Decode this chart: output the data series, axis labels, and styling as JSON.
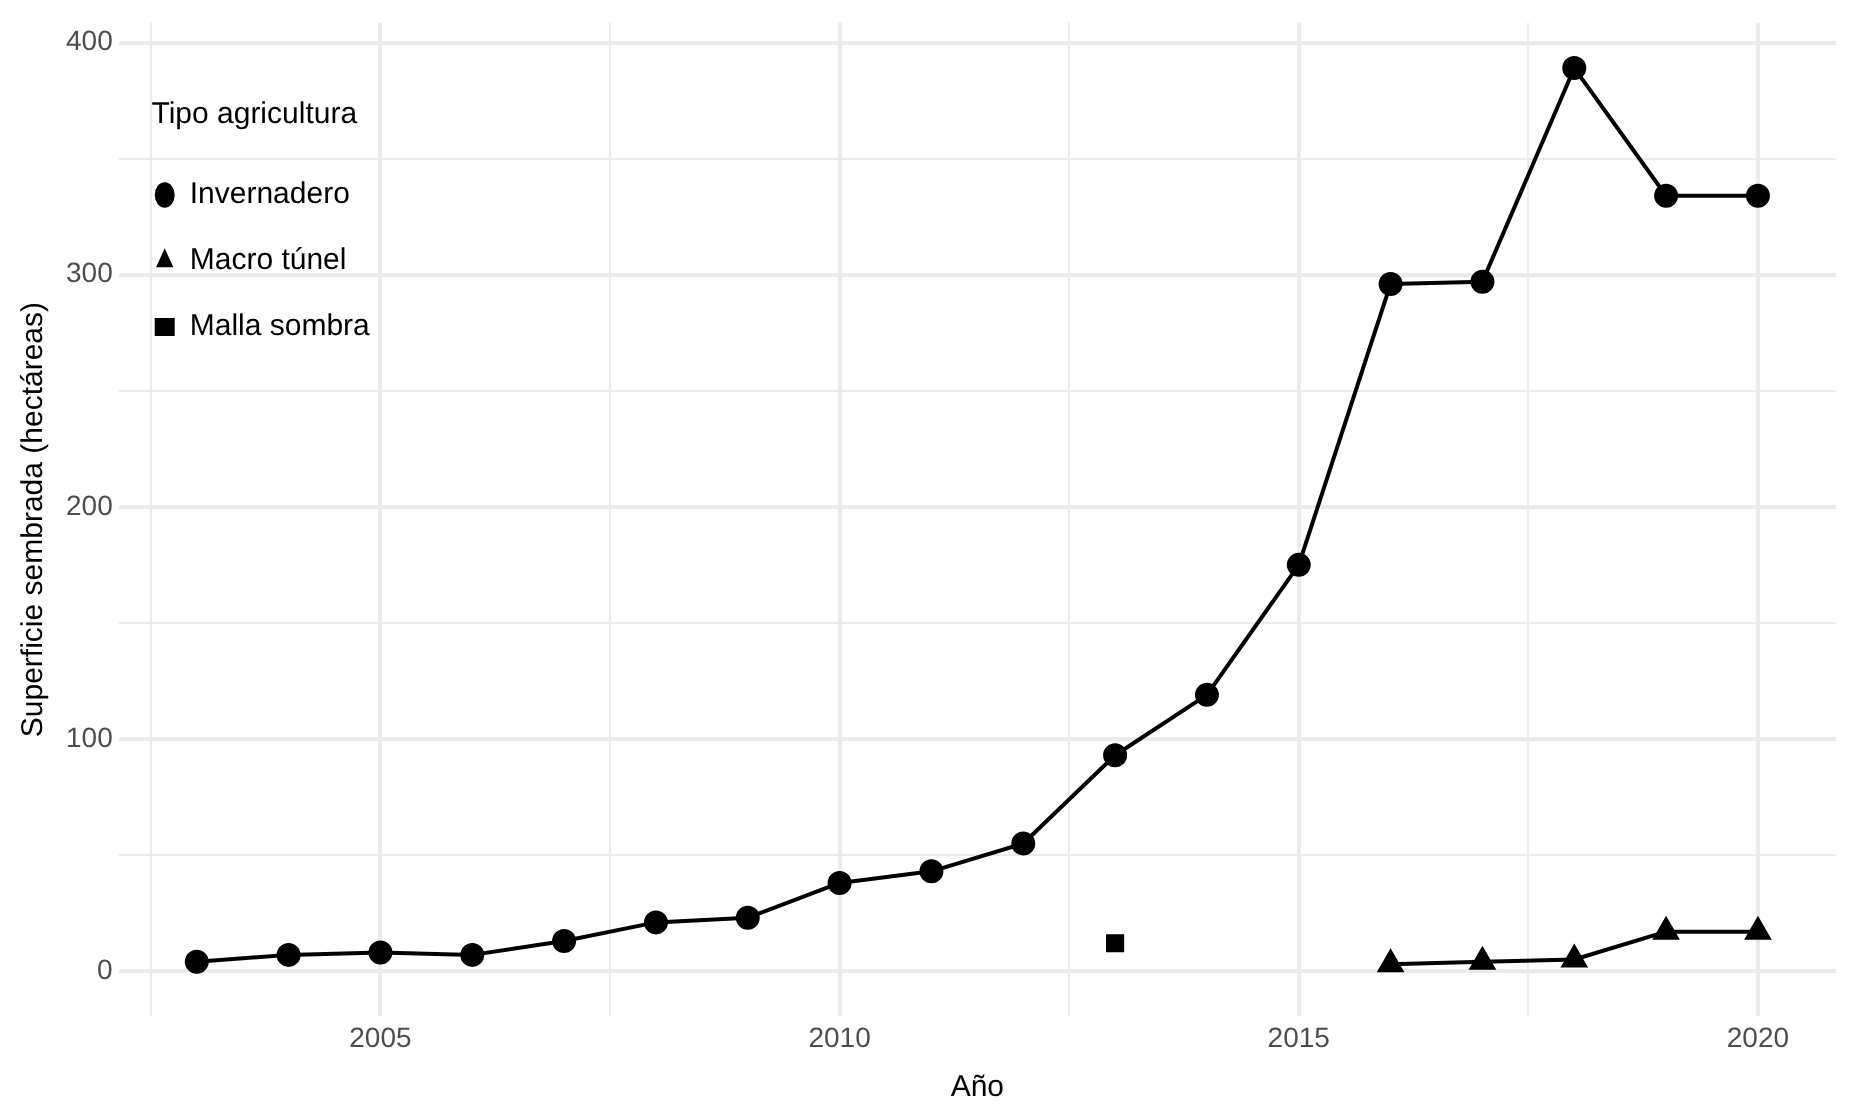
{
  "chart_data": {
    "type": "line",
    "xlabel": "Año",
    "ylabel": "Superficie sembrada (hectáreas)",
    "legend_title": "Tipo agricultura",
    "legend": "top left",
    "grid": true,
    "xlim": [
      2002.15,
      2020.85
    ],
    "xticks": [
      {
        "value": 2002.5,
        "label": null
      },
      2005,
      {
        "value": 2007.5,
        "label": null
      },
      2010,
      {
        "value": 2012.5,
        "label": null
      },
      2015,
      {
        "value": 2017.5,
        "label": null
      },
      2020
    ],
    "ylim": [
      -19.5,
      408.5
    ],
    "yticks": [
      0,
      {
        "value": 50,
        "label": null
      },
      100,
      {
        "value": 150,
        "label": null
      },
      200,
      {
        "value": 250,
        "label": null
      },
      300,
      {
        "value": 350,
        "label": null
      },
      400
    ],
    "series": [
      {
        "name": "Invernadero",
        "color": "#000000",
        "marker": "circle",
        "x": [
          2003,
          2004,
          2005,
          2006,
          2007,
          2008,
          2009,
          2010,
          2011,
          2012,
          2013,
          2014,
          2015,
          2016,
          2017,
          2018,
          2019,
          2020
        ],
        "values": [
          4,
          7,
          8,
          7,
          13,
          21,
          23,
          38,
          43,
          55,
          93,
          119,
          175,
          296,
          297,
          389,
          334,
          334
        ]
      },
      {
        "name": "Macro túnel",
        "color": "#000000",
        "marker": "triangle",
        "x": [
          2016,
          2017,
          2018,
          2019,
          2020
        ],
        "values": [
          3,
          4,
          5,
          17,
          17
        ]
      },
      {
        "name": "Malla sombra",
        "color": "#000000",
        "marker": "square",
        "x": [
          2013
        ],
        "values": [
          12
        ]
      }
    ]
  }
}
